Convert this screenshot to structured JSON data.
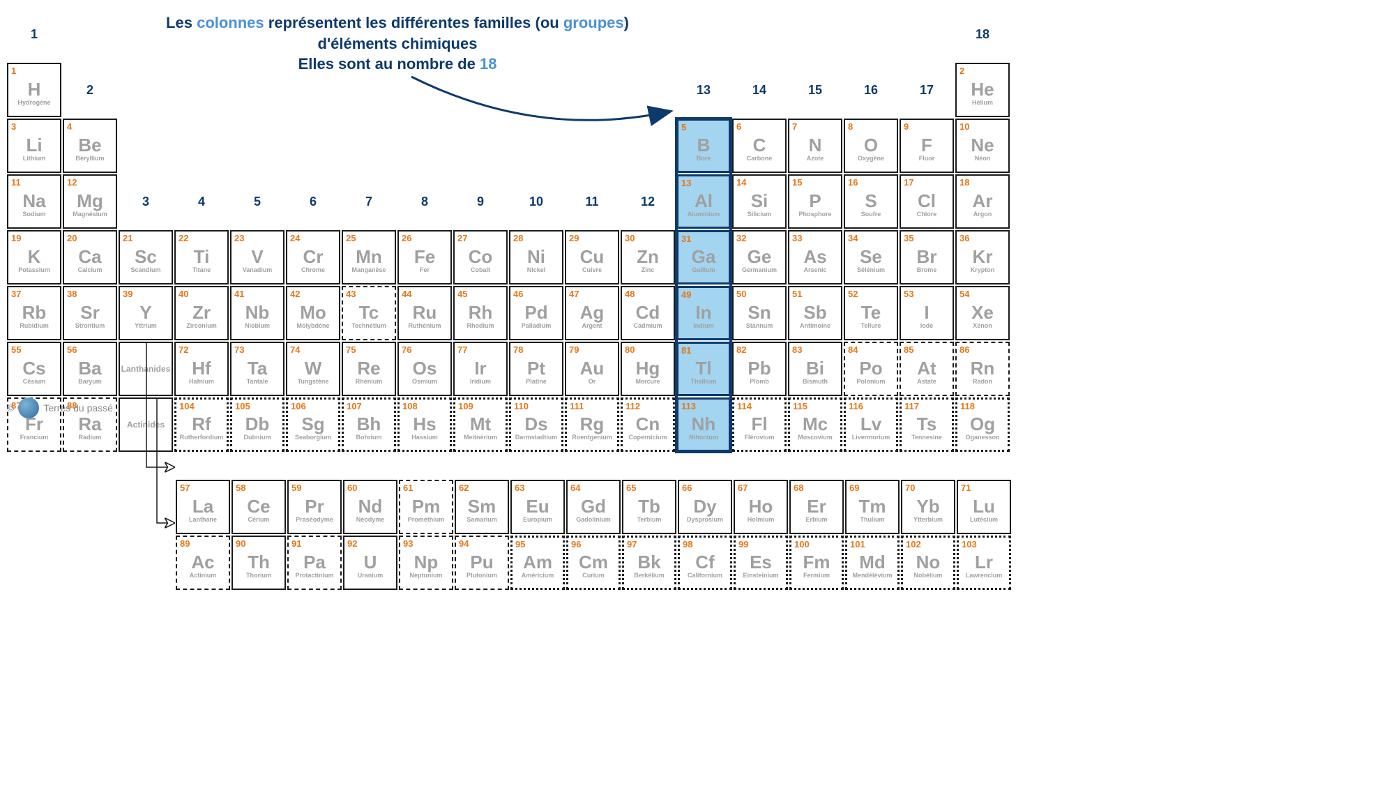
{
  "caption": {
    "l1a": "Les ",
    "l1b": "colonnes",
    "l1c": " représentent les  différentes ",
    "l1d": "familles",
    "l1e": " (ou ",
    "l1f": "groupes",
    "l1g": ")",
    "l2": "d'éléments chimiques",
    "l3a": "Elles sont au nombre de ",
    "l3b": "18"
  },
  "colors": {
    "atomic_number": "#e67817",
    "symbol": "#a0a0a0",
    "name": "#a0a0a0",
    "col_label": "#0d3a6b",
    "highlight_bg": "#a3d4f0",
    "highlight_border": "#0d3a6b",
    "cell_border": "#1a1a1a",
    "background": "#ffffff"
  },
  "column_labels": [
    "1",
    "2",
    "3",
    "4",
    "5",
    "6",
    "7",
    "8",
    "9",
    "10",
    "11",
    "12",
    "13",
    "14",
    "15",
    "16",
    "17",
    "18"
  ],
  "placeholder_lan": "Lanthanides",
  "placeholder_act": "Actinides",
  "credit": "Terres du passé",
  "highlight_column": 13,
  "elements": {
    "1": {
      "s": "H",
      "n": "Hydrogène",
      "b": "solid"
    },
    "2": {
      "s": "He",
      "n": "Hélium",
      "b": "solid"
    },
    "3": {
      "s": "Li",
      "n": "Lithium",
      "b": "solid"
    },
    "4": {
      "s": "Be",
      "n": "Béryllium",
      "b": "solid"
    },
    "5": {
      "s": "B",
      "n": "Bore",
      "b": "solid",
      "hl": true
    },
    "6": {
      "s": "C",
      "n": "Carbone",
      "b": "solid"
    },
    "7": {
      "s": "N",
      "n": "Azote",
      "b": "solid"
    },
    "8": {
      "s": "O",
      "n": "Oxygène",
      "b": "solid"
    },
    "9": {
      "s": "F",
      "n": "Fluor",
      "b": "solid"
    },
    "10": {
      "s": "Ne",
      "n": "Néon",
      "b": "solid"
    },
    "11": {
      "s": "Na",
      "n": "Sodium",
      "b": "solid"
    },
    "12": {
      "s": "Mg",
      "n": "Magnésium",
      "b": "solid"
    },
    "13": {
      "s": "Al",
      "n": "Aluminium",
      "b": "solid",
      "hl": true
    },
    "14": {
      "s": "Si",
      "n": "Silicium",
      "b": "solid"
    },
    "15": {
      "s": "P",
      "n": "Phosphore",
      "b": "solid"
    },
    "16": {
      "s": "S",
      "n": "Soufre",
      "b": "solid"
    },
    "17": {
      "s": "Cl",
      "n": "Chlore",
      "b": "solid"
    },
    "18": {
      "s": "Ar",
      "n": "Argon",
      "b": "solid"
    },
    "19": {
      "s": "K",
      "n": "Potassium",
      "b": "solid"
    },
    "20": {
      "s": "Ca",
      "n": "Calcium",
      "b": "solid"
    },
    "21": {
      "s": "Sc",
      "n": "Scandium",
      "b": "solid"
    },
    "22": {
      "s": "Ti",
      "n": "Titane",
      "b": "solid"
    },
    "23": {
      "s": "V",
      "n": "Vanadium",
      "b": "solid"
    },
    "24": {
      "s": "Cr",
      "n": "Chrome",
      "b": "solid"
    },
    "25": {
      "s": "Mn",
      "n": "Manganèse",
      "b": "solid"
    },
    "26": {
      "s": "Fe",
      "n": "Fer",
      "b": "solid"
    },
    "27": {
      "s": "Co",
      "n": "Cobalt",
      "b": "solid"
    },
    "28": {
      "s": "Ni",
      "n": "Nickel",
      "b": "solid"
    },
    "29": {
      "s": "Cu",
      "n": "Cuivre",
      "b": "solid"
    },
    "30": {
      "s": "Zn",
      "n": "Zinc",
      "b": "solid"
    },
    "31": {
      "s": "Ga",
      "n": "Gallium",
      "b": "solid",
      "hl": true
    },
    "32": {
      "s": "Ge",
      "n": "Germanium",
      "b": "solid"
    },
    "33": {
      "s": "As",
      "n": "Arsenic",
      "b": "solid"
    },
    "34": {
      "s": "Se",
      "n": "Sélénium",
      "b": "solid"
    },
    "35": {
      "s": "Br",
      "n": "Brome",
      "b": "solid"
    },
    "36": {
      "s": "Kr",
      "n": "Krypton",
      "b": "solid"
    },
    "37": {
      "s": "Rb",
      "n": "Rubidium",
      "b": "solid"
    },
    "38": {
      "s": "Sr",
      "n": "Strontium",
      "b": "solid"
    },
    "39": {
      "s": "Y",
      "n": "Yttrium",
      "b": "solid"
    },
    "40": {
      "s": "Zr",
      "n": "Zirconium",
      "b": "solid"
    },
    "41": {
      "s": "Nb",
      "n": "Niobium",
      "b": "solid"
    },
    "42": {
      "s": "Mo",
      "n": "Molybdène",
      "b": "solid"
    },
    "43": {
      "s": "Tc",
      "n": "Technétium",
      "b": "dashed"
    },
    "44": {
      "s": "Ru",
      "n": "Ruthénium",
      "b": "solid"
    },
    "45": {
      "s": "Rh",
      "n": "Rhodium",
      "b": "solid"
    },
    "46": {
      "s": "Pd",
      "n": "Palladium",
      "b": "solid"
    },
    "47": {
      "s": "Ag",
      "n": "Argent",
      "b": "solid"
    },
    "48": {
      "s": "Cd",
      "n": "Cadmium",
      "b": "solid"
    },
    "49": {
      "s": "In",
      "n": "Indium",
      "b": "solid",
      "hl": true
    },
    "50": {
      "s": "Sn",
      "n": "Stannum",
      "b": "solid"
    },
    "51": {
      "s": "Sb",
      "n": "Antimoine",
      "b": "solid"
    },
    "52": {
      "s": "Te",
      "n": "Tellure",
      "b": "solid"
    },
    "53": {
      "s": "I",
      "n": "Iode",
      "b": "solid"
    },
    "54": {
      "s": "Xe",
      "n": "Xénon",
      "b": "solid"
    },
    "55": {
      "s": "Cs",
      "n": "Césium",
      "b": "solid"
    },
    "56": {
      "s": "Ba",
      "n": "Baryum",
      "b": "solid"
    },
    "72": {
      "s": "Hf",
      "n": "Hafnium",
      "b": "solid"
    },
    "73": {
      "s": "Ta",
      "n": "Tantale",
      "b": "solid"
    },
    "74": {
      "s": "W",
      "n": "Tungstène",
      "b": "solid"
    },
    "75": {
      "s": "Re",
      "n": "Rhénium",
      "b": "solid"
    },
    "76": {
      "s": "Os",
      "n": "Osmium",
      "b": "solid"
    },
    "77": {
      "s": "Ir",
      "n": "Iridium",
      "b": "solid"
    },
    "78": {
      "s": "Pt",
      "n": "Platine",
      "b": "solid"
    },
    "79": {
      "s": "Au",
      "n": "Or",
      "b": "solid"
    },
    "80": {
      "s": "Hg",
      "n": "Mercure",
      "b": "solid"
    },
    "81": {
      "s": "Tl",
      "n": "Thallium",
      "b": "solid",
      "hl": true
    },
    "82": {
      "s": "Pb",
      "n": "Plomb",
      "b": "solid"
    },
    "83": {
      "s": "Bi",
      "n": "Bismuth",
      "b": "solid"
    },
    "84": {
      "s": "Po",
      "n": "Polonium",
      "b": "dashed"
    },
    "85": {
      "s": "At",
      "n": "Astate",
      "b": "dashed"
    },
    "86": {
      "s": "Rn",
      "n": "Radon",
      "b": "dashed"
    },
    "87": {
      "s": "Fr",
      "n": "Francium",
      "b": "dashed"
    },
    "88": {
      "s": "Ra",
      "n": "Radium",
      "b": "dashed"
    },
    "104": {
      "s": "Rf",
      "n": "Rutherfordium",
      "b": "dotted"
    },
    "105": {
      "s": "Db",
      "n": "Dubnium",
      "b": "dotted"
    },
    "106": {
      "s": "Sg",
      "n": "Seaborgium",
      "b": "dotted"
    },
    "107": {
      "s": "Bh",
      "n": "Bohrium",
      "b": "dotted"
    },
    "108": {
      "s": "Hs",
      "n": "Hassium",
      "b": "dotted"
    },
    "109": {
      "s": "Mt",
      "n": "Meitnérium",
      "b": "dotted"
    },
    "110": {
      "s": "Ds",
      "n": "Darmstadtium",
      "b": "dotted"
    },
    "111": {
      "s": "Rg",
      "n": "Roentgenium",
      "b": "dotted"
    },
    "112": {
      "s": "Cn",
      "n": "Copernicium",
      "b": "dotted"
    },
    "113": {
      "s": "Nh",
      "n": "Nihonium",
      "b": "dotted",
      "hl": true
    },
    "114": {
      "s": "Fl",
      "n": "Flérovium",
      "b": "dotted"
    },
    "115": {
      "s": "Mc",
      "n": "Moscovium",
      "b": "dotted"
    },
    "116": {
      "s": "Lv",
      "n": "Livermorium",
      "b": "dotted"
    },
    "117": {
      "s": "Ts",
      "n": "Tennesine",
      "b": "dotted"
    },
    "118": {
      "s": "Og",
      "n": "Oganesson",
      "b": "dotted"
    },
    "57": {
      "s": "La",
      "n": "Lanthane",
      "b": "solid"
    },
    "58": {
      "s": "Ce",
      "n": "Cérium",
      "b": "solid"
    },
    "59": {
      "s": "Pr",
      "n": "Praséodyme",
      "b": "solid"
    },
    "60": {
      "s": "Nd",
      "n": "Néodyme",
      "b": "solid"
    },
    "61": {
      "s": "Pm",
      "n": "Prométhium",
      "b": "dashed"
    },
    "62": {
      "s": "Sm",
      "n": "Samarium",
      "b": "solid"
    },
    "63": {
      "s": "Eu",
      "n": "Europium",
      "b": "solid"
    },
    "64": {
      "s": "Gd",
      "n": "Gadolinium",
      "b": "solid"
    },
    "65": {
      "s": "Tb",
      "n": "Terbium",
      "b": "solid"
    },
    "66": {
      "s": "Dy",
      "n": "Dysprosium",
      "b": "solid"
    },
    "67": {
      "s": "Ho",
      "n": "Holmium",
      "b": "solid"
    },
    "68": {
      "s": "Er",
      "n": "Erbium",
      "b": "solid"
    },
    "69": {
      "s": "Tm",
      "n": "Thulium",
      "b": "solid"
    },
    "70": {
      "s": "Yb",
      "n": "Ytterbium",
      "b": "solid"
    },
    "71": {
      "s": "Lu",
      "n": "Lutécium",
      "b": "solid"
    },
    "89": {
      "s": "Ac",
      "n": "Actinium",
      "b": "dashed"
    },
    "90": {
      "s": "Th",
      "n": "Thorium",
      "b": "solid"
    },
    "91": {
      "s": "Pa",
      "n": "Protactinium",
      "b": "dashed"
    },
    "92": {
      "s": "U",
      "n": "Uranium",
      "b": "solid"
    },
    "93": {
      "s": "Np",
      "n": "Neptunium",
      "b": "dashed"
    },
    "94": {
      "s": "Pu",
      "n": "Plutonium",
      "b": "dashed"
    },
    "95": {
      "s": "Am",
      "n": "Américium",
      "b": "dotted"
    },
    "96": {
      "s": "Cm",
      "n": "Curium",
      "b": "dotted"
    },
    "97": {
      "s": "Bk",
      "n": "Berkélium",
      "b": "dotted"
    },
    "98": {
      "s": "Cf",
      "n": "Californium",
      "b": "dotted"
    },
    "99": {
      "s": "Es",
      "n": "Einsteinium",
      "b": "dotted"
    },
    "100": {
      "s": "Fm",
      "n": "Fermium",
      "b": "dotted"
    },
    "101": {
      "s": "Md",
      "n": "Mendélévium",
      "b": "dotted"
    },
    "102": {
      "s": "No",
      "n": "Nobélium",
      "b": "dotted"
    },
    "103": {
      "s": "Lr",
      "n": "Lawrencium",
      "b": "dotted"
    }
  },
  "layout_main": [
    [
      {
        "t": "col",
        "i": 0
      },
      {
        "t": "e"
      },
      {
        "t": "e"
      },
      {
        "t": "e"
      },
      {
        "t": "e"
      },
      {
        "t": "e"
      },
      {
        "t": "e"
      },
      {
        "t": "e"
      },
      {
        "t": "e"
      },
      {
        "t": "e"
      },
      {
        "t": "e"
      },
      {
        "t": "e"
      },
      {
        "t": "e"
      },
      {
        "t": "e"
      },
      {
        "t": "e"
      },
      {
        "t": "e"
      },
      {
        "t": "e"
      },
      {
        "t": "col",
        "i": 17
      }
    ],
    [
      {
        "t": "el",
        "z": "1"
      },
      {
        "t": "col",
        "i": 1
      },
      {
        "t": "e"
      },
      {
        "t": "e"
      },
      {
        "t": "e"
      },
      {
        "t": "e"
      },
      {
        "t": "e"
      },
      {
        "t": "e"
      },
      {
        "t": "e"
      },
      {
        "t": "e"
      },
      {
        "t": "e"
      },
      {
        "t": "e"
      },
      {
        "t": "col",
        "i": 12
      },
      {
        "t": "col",
        "i": 13
      },
      {
        "t": "col",
        "i": 14
      },
      {
        "t": "col",
        "i": 15
      },
      {
        "t": "col",
        "i": 16
      },
      {
        "t": "el",
        "z": "2"
      }
    ],
    [
      {
        "t": "el",
        "z": "3"
      },
      {
        "t": "el",
        "z": "4"
      },
      {
        "t": "e"
      },
      {
        "t": "e"
      },
      {
        "t": "e"
      },
      {
        "t": "e"
      },
      {
        "t": "e"
      },
      {
        "t": "e"
      },
      {
        "t": "e"
      },
      {
        "t": "e"
      },
      {
        "t": "e"
      },
      {
        "t": "e"
      },
      {
        "t": "el",
        "z": "5"
      },
      {
        "t": "el",
        "z": "6"
      },
      {
        "t": "el",
        "z": "7"
      },
      {
        "t": "el",
        "z": "8"
      },
      {
        "t": "el",
        "z": "9"
      },
      {
        "t": "el",
        "z": "10"
      }
    ],
    [
      {
        "t": "el",
        "z": "11"
      },
      {
        "t": "el",
        "z": "12"
      },
      {
        "t": "col",
        "i": 2
      },
      {
        "t": "col",
        "i": 3
      },
      {
        "t": "col",
        "i": 4
      },
      {
        "t": "col",
        "i": 5
      },
      {
        "t": "col",
        "i": 6
      },
      {
        "t": "col",
        "i": 7
      },
      {
        "t": "col",
        "i": 8
      },
      {
        "t": "col",
        "i": 9
      },
      {
        "t": "col",
        "i": 10
      },
      {
        "t": "col",
        "i": 11
      },
      {
        "t": "el",
        "z": "13"
      },
      {
        "t": "el",
        "z": "14"
      },
      {
        "t": "el",
        "z": "15"
      },
      {
        "t": "el",
        "z": "16"
      },
      {
        "t": "el",
        "z": "17"
      },
      {
        "t": "el",
        "z": "18"
      }
    ],
    [
      {
        "t": "el",
        "z": "19"
      },
      {
        "t": "el",
        "z": "20"
      },
      {
        "t": "el",
        "z": "21"
      },
      {
        "t": "el",
        "z": "22"
      },
      {
        "t": "el",
        "z": "23"
      },
      {
        "t": "el",
        "z": "24"
      },
      {
        "t": "el",
        "z": "25"
      },
      {
        "t": "el",
        "z": "26"
      },
      {
        "t": "el",
        "z": "27"
      },
      {
        "t": "el",
        "z": "28"
      },
      {
        "t": "el",
        "z": "29"
      },
      {
        "t": "el",
        "z": "30"
      },
      {
        "t": "el",
        "z": "31"
      },
      {
        "t": "el",
        "z": "32"
      },
      {
        "t": "el",
        "z": "33"
      },
      {
        "t": "el",
        "z": "34"
      },
      {
        "t": "el",
        "z": "35"
      },
      {
        "t": "el",
        "z": "36"
      }
    ],
    [
      {
        "t": "el",
        "z": "37"
      },
      {
        "t": "el",
        "z": "38"
      },
      {
        "t": "el",
        "z": "39"
      },
      {
        "t": "el",
        "z": "40"
      },
      {
        "t": "el",
        "z": "41"
      },
      {
        "t": "el",
        "z": "42"
      },
      {
        "t": "el",
        "z": "43"
      },
      {
        "t": "el",
        "z": "44"
      },
      {
        "t": "el",
        "z": "45"
      },
      {
        "t": "el",
        "z": "46"
      },
      {
        "t": "el",
        "z": "47"
      },
      {
        "t": "el",
        "z": "48"
      },
      {
        "t": "el",
        "z": "49"
      },
      {
        "t": "el",
        "z": "50"
      },
      {
        "t": "el",
        "z": "51"
      },
      {
        "t": "el",
        "z": "52"
      },
      {
        "t": "el",
        "z": "53"
      },
      {
        "t": "el",
        "z": "54"
      }
    ],
    [
      {
        "t": "el",
        "z": "55"
      },
      {
        "t": "el",
        "z": "56"
      },
      {
        "t": "ph",
        "k": "placeholder_lan"
      },
      {
        "t": "el",
        "z": "72"
      },
      {
        "t": "el",
        "z": "73"
      },
      {
        "t": "el",
        "z": "74"
      },
      {
        "t": "el",
        "z": "75"
      },
      {
        "t": "el",
        "z": "76"
      },
      {
        "t": "el",
        "z": "77"
      },
      {
        "t": "el",
        "z": "78"
      },
      {
        "t": "el",
        "z": "79"
      },
      {
        "t": "el",
        "z": "80"
      },
      {
        "t": "el",
        "z": "81"
      },
      {
        "t": "el",
        "z": "82"
      },
      {
        "t": "el",
        "z": "83"
      },
      {
        "t": "el",
        "z": "84"
      },
      {
        "t": "el",
        "z": "85"
      },
      {
        "t": "el",
        "z": "86"
      }
    ],
    [
      {
        "t": "el",
        "z": "87"
      },
      {
        "t": "el",
        "z": "88"
      },
      {
        "t": "ph",
        "k": "placeholder_act"
      },
      {
        "t": "el",
        "z": "104"
      },
      {
        "t": "el",
        "z": "105"
      },
      {
        "t": "el",
        "z": "106"
      },
      {
        "t": "el",
        "z": "107"
      },
      {
        "t": "el",
        "z": "108"
      },
      {
        "t": "el",
        "z": "109"
      },
      {
        "t": "el",
        "z": "110"
      },
      {
        "t": "el",
        "z": "111"
      },
      {
        "t": "el",
        "z": "112"
      },
      {
        "t": "el",
        "z": "113"
      },
      {
        "t": "el",
        "z": "114"
      },
      {
        "t": "el",
        "z": "115"
      },
      {
        "t": "el",
        "z": "116"
      },
      {
        "t": "el",
        "z": "117"
      },
      {
        "t": "el",
        "z": "118"
      }
    ]
  ],
  "layout_lan": [
    "57",
    "58",
    "59",
    "60",
    "61",
    "62",
    "63",
    "64",
    "65",
    "66",
    "67",
    "68",
    "69",
    "70",
    "71"
  ],
  "layout_act": [
    "89",
    "90",
    "91",
    "92",
    "93",
    "94",
    "95",
    "96",
    "97",
    "98",
    "99",
    "100",
    "101",
    "102",
    "103"
  ]
}
